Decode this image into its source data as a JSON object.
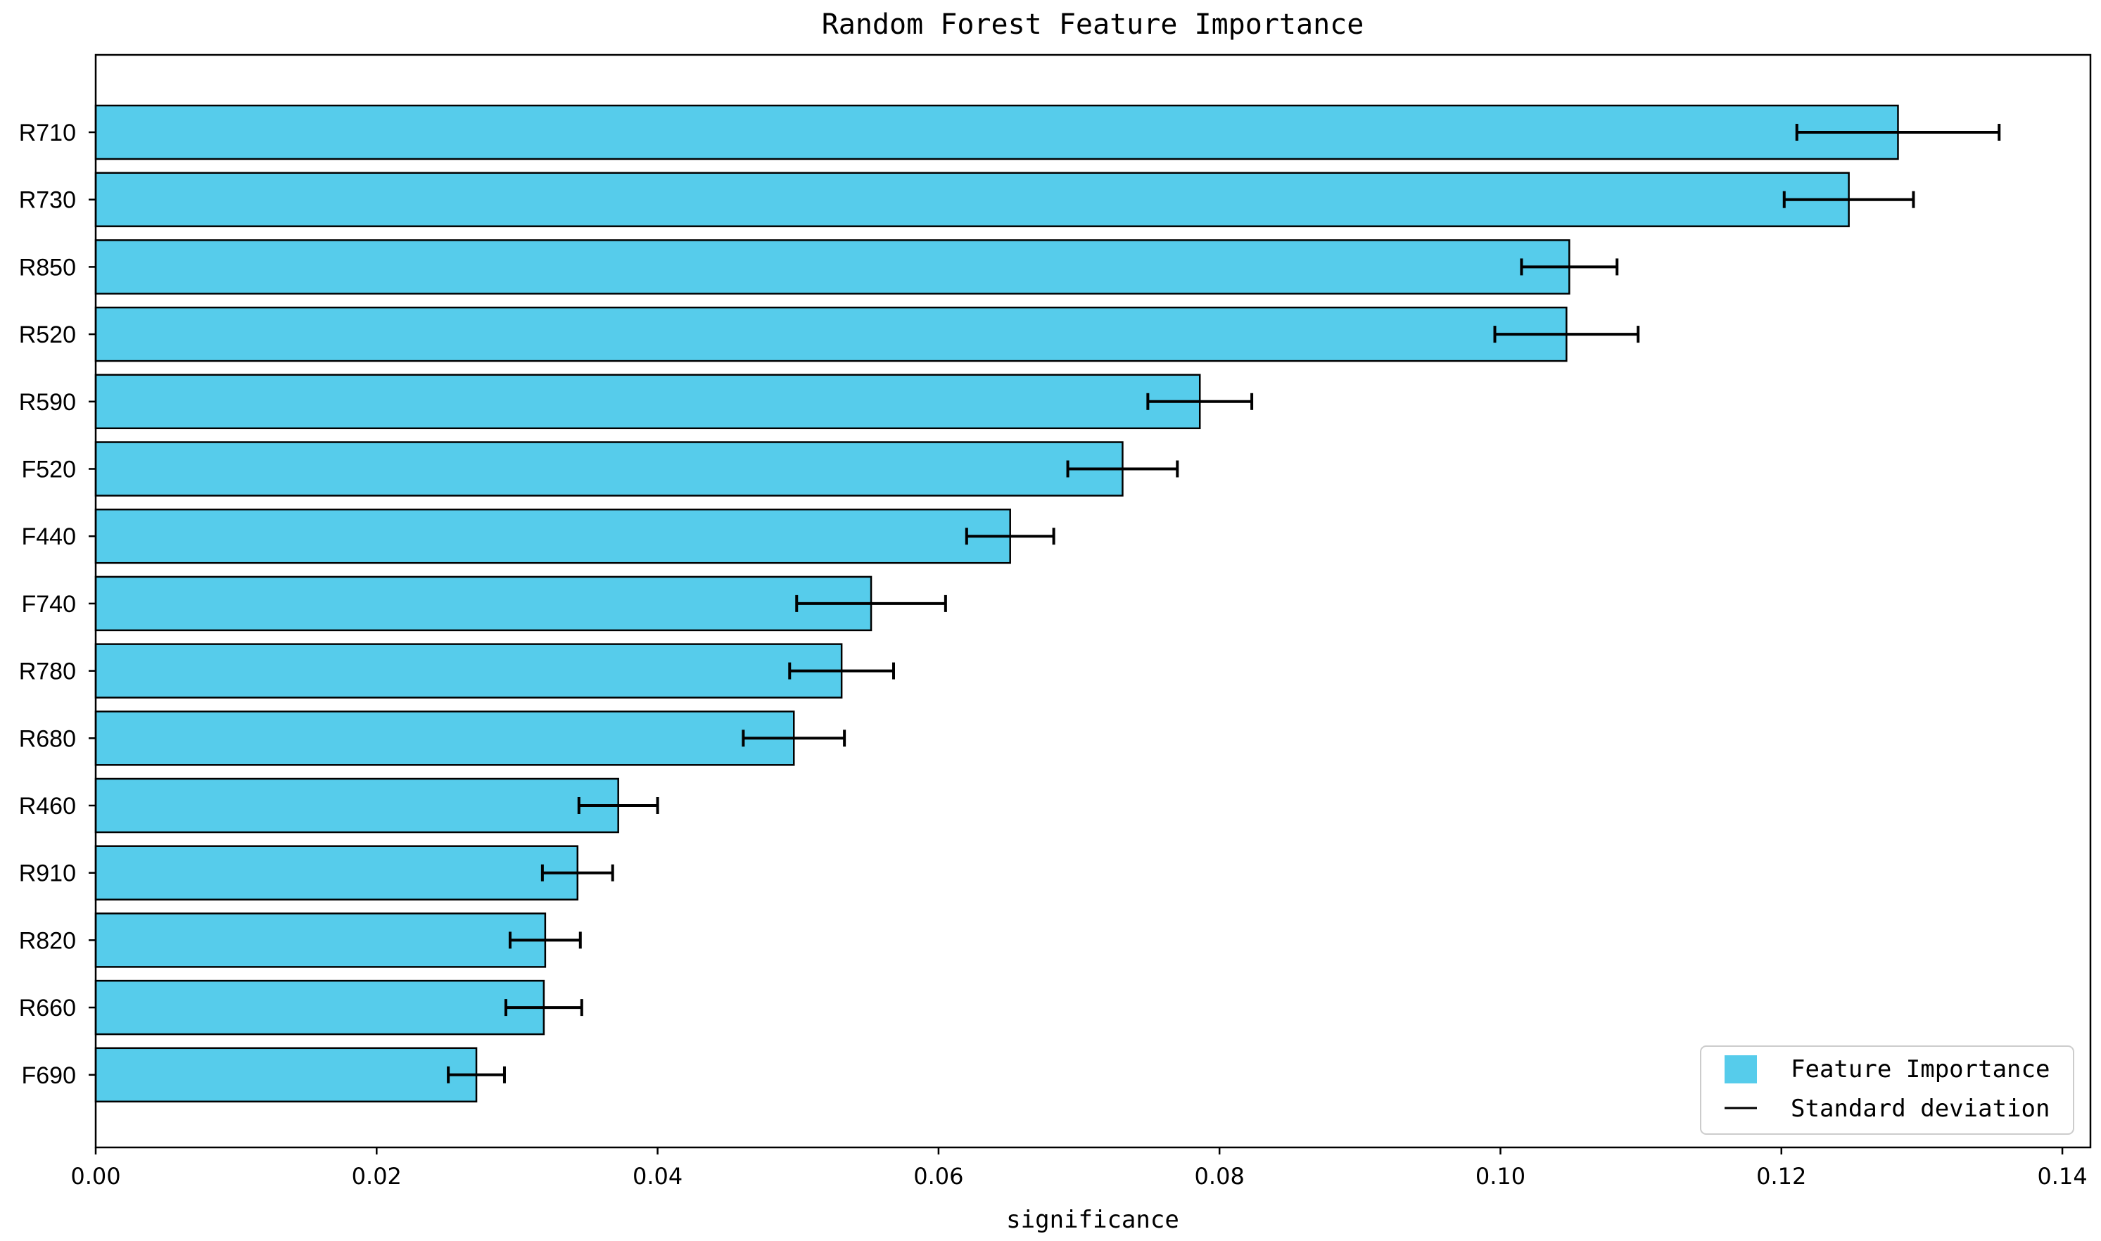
{
  "chart_data": {
    "type": "bar",
    "orientation": "horizontal",
    "title": "Random Forest Feature Importance",
    "xlabel": "significance",
    "ylabel": "",
    "xlim": [
      0,
      0.142
    ],
    "xticks": [
      "0.00",
      "0.02",
      "0.04",
      "0.06",
      "0.08",
      "0.10",
      "0.12",
      "0.14"
    ],
    "xtick_values": [
      0,
      0.02,
      0.04,
      0.06,
      0.08,
      0.1,
      0.12,
      0.14
    ],
    "grid": false,
    "legend_position": "bottom-right",
    "bar_color": "#56CCEB",
    "error_color": "#000000",
    "legend": {
      "bar_label": "Feature Importance",
      "error_label": "Standard deviation"
    },
    "categories": [
      "R710",
      "R730",
      "R850",
      "R520",
      "R590",
      "F520",
      "F440",
      "F740",
      "R780",
      "R680",
      "R460",
      "R910",
      "R820",
      "R660",
      "F690"
    ],
    "values": [
      0.1283,
      0.1248,
      0.1049,
      0.1047,
      0.0786,
      0.0731,
      0.0651,
      0.0552,
      0.0531,
      0.0497,
      0.0372,
      0.0343,
      0.032,
      0.0319,
      0.0271
    ],
    "std": [
      0.0072,
      0.0046,
      0.0034,
      0.0051,
      0.0037,
      0.0039,
      0.0031,
      0.0053,
      0.0037,
      0.0036,
      0.0028,
      0.0025,
      0.0025,
      0.0027,
      0.002
    ]
  }
}
